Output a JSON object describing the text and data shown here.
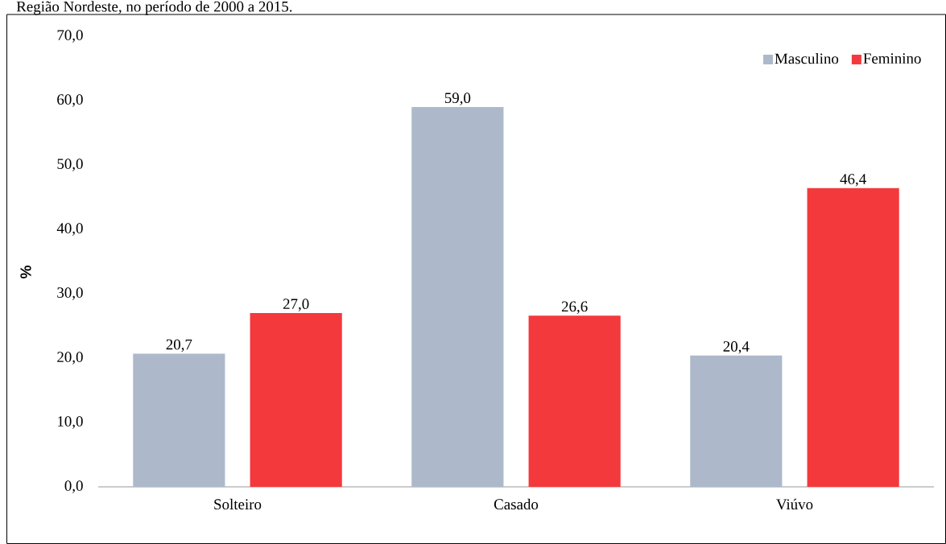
{
  "chart_data": {
    "type": "bar",
    "title": "Região Nordeste, no período de 2000 a 2015.",
    "ylabel": "%",
    "categories": [
      "Solteiro",
      "Casado",
      "Viúvo"
    ],
    "series": [
      {
        "name": "Masculino",
        "color": "#adb9ca",
        "values": [
          20.7,
          59.0,
          20.4
        ],
        "value_labels": [
          "20,7",
          "59,0",
          "20,4"
        ]
      },
      {
        "name": "Feminino",
        "color": "#f4393c",
        "values": [
          27.0,
          26.6,
          46.4
        ],
        "value_labels": [
          "27,0",
          "26,6",
          "46,4"
        ]
      }
    ],
    "ylim": [
      0,
      70
    ],
    "yticks": [
      {
        "value": 0,
        "label": "0,0"
      },
      {
        "value": 10,
        "label": "10,0"
      },
      {
        "value": 20,
        "label": "20,0"
      },
      {
        "value": 30,
        "label": "30,0"
      },
      {
        "value": 40,
        "label": "40,0"
      },
      {
        "value": 50,
        "label": "50,0"
      },
      {
        "value": 60,
        "label": "60,0"
      },
      {
        "value": 70,
        "label": "70,0"
      }
    ],
    "grid": false,
    "legend": "top right"
  }
}
